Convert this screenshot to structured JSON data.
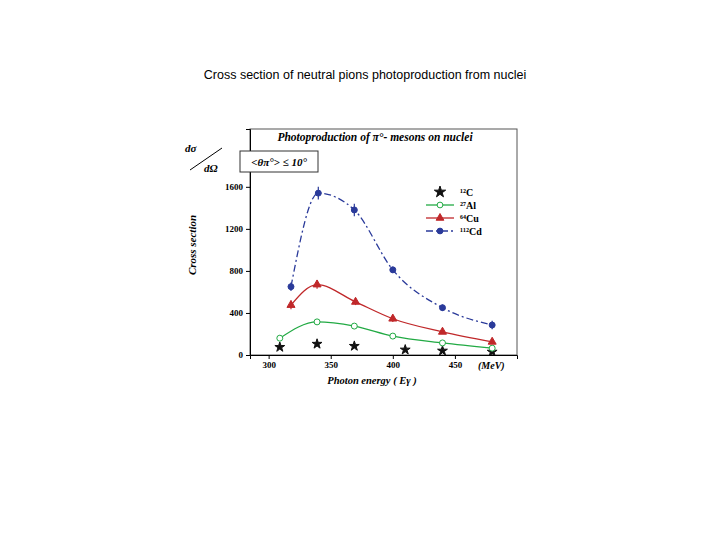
{
  "chart_data": {
    "type": "scatter",
    "page_title": "Cross section of neutral pions photoproduction from nuclei",
    "title": "Photoproduction of π°- mesons on nuclei",
    "y_label": "Cross section",
    "x_label": "Photon energy ( Eγ )",
    "annotations": [
      "dσ",
      "dΩ",
      "<θπ°> ≤ 10°",
      "(MeV)"
    ],
    "xlim": [
      285,
      500
    ],
    "xticks": [
      300,
      350,
      400,
      450
    ],
    "ylim": [
      0,
      2150
    ],
    "yticks": [
      0,
      400,
      800,
      1200,
      1600
    ],
    "legend": "upper right",
    "grid": false,
    "series": [
      {
        "name": "¹²C",
        "color": "#111111",
        "marker": "star",
        "line_style": "none",
        "x": [
          309,
          339,
          369,
          410,
          440,
          480
        ],
        "values": [
          75,
          105,
          85,
          50,
          40,
          30
        ]
      },
      {
        "name": "²⁷Al",
        "color": "#22aa44",
        "marker": "circle-open",
        "line_style": "solid",
        "x": [
          309,
          339,
          369,
          400,
          440,
          480
        ],
        "values": [
          160,
          315,
          275,
          180,
          115,
          65
        ],
        "errors": [
          15,
          20,
          20,
          10,
          10,
          10
        ]
      },
      {
        "name": "⁶⁴Cu",
        "color": "#c0282a",
        "marker": "triangle",
        "line_style": "solid",
        "x": [
          318,
          339,
          370,
          400,
          440,
          480
        ],
        "values": [
          475,
          670,
          505,
          345,
          220,
          125
        ],
        "errors": [
          40,
          40,
          30,
          30,
          20,
          20
        ]
      },
      {
        "name": "¹¹²Cd",
        "color": "#2a3a9a",
        "marker": "circle",
        "line_style": "dashdot",
        "x": [
          318,
          340,
          369,
          400,
          440,
          480
        ],
        "values": [
          650,
          1540,
          1380,
          810,
          450,
          285
        ],
        "errors": [
          40,
          60,
          60,
          30,
          30,
          40
        ]
      }
    ]
  }
}
